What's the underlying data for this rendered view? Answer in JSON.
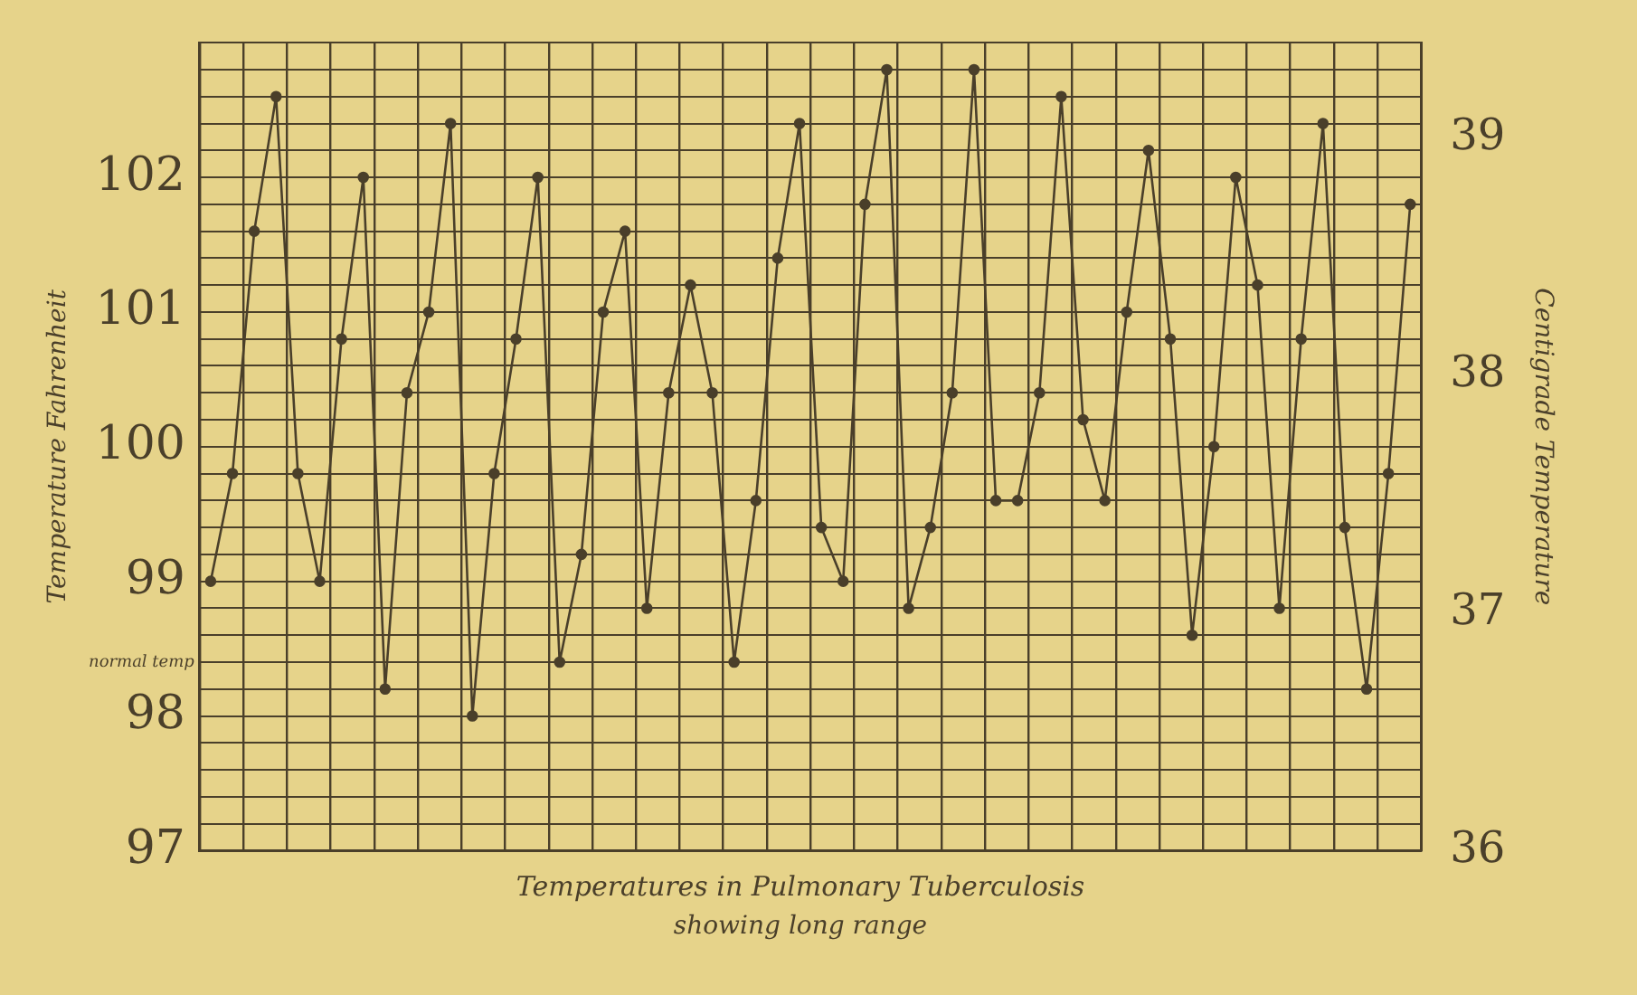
{
  "chart_data": {
    "type": "line",
    "title": "Temperatures in Pulmonary Tuberculosis",
    "subtitle": "showing long range",
    "ylabel": "Temperature Fahrenheit",
    "y2label": "Centigrade Temperature",
    "categories": [
      null,
      null,
      null,
      null,
      null,
      null,
      null,
      null,
      null,
      null,
      null,
      null,
      null,
      null,
      null,
      null,
      null,
      null,
      null,
      null,
      null,
      null,
      null,
      null,
      null,
      null,
      null,
      null,
      null,
      null,
      null,
      null,
      null,
      null,
      null,
      null,
      null,
      null,
      null,
      null,
      null,
      null,
      null,
      null,
      null,
      null,
      null,
      null,
      null,
      null,
      null,
      null,
      null,
      null,
      null,
      null
    ],
    "series": [
      {
        "color": "#4a3f2a",
        "values": [
          99.0,
          99.8,
          101.6,
          102.6,
          99.8,
          99.0,
          100.8,
          102.0,
          98.2,
          100.4,
          101.0,
          102.4,
          98.0,
          99.8,
          100.8,
          102.0,
          98.4,
          99.2,
          101.0,
          101.6,
          98.8,
          100.4,
          101.2,
          100.4,
          98.4,
          99.6,
          101.4,
          102.4,
          99.4,
          99.0,
          101.8,
          102.8,
          98.8,
          99.4,
          100.4,
          102.8,
          99.6,
          99.6,
          100.4,
          102.6,
          100.2,
          99.6,
          101.0,
          102.2,
          100.8,
          98.6,
          100.0,
          102.0,
          101.2,
          98.8,
          100.8,
          102.4,
          99.4,
          98.2,
          99.8,
          101.8
        ]
      }
    ],
    "ylim": [
      97,
      103
    ],
    "yticks": [
      97,
      {
        "value": 97.2,
        "label": null
      },
      {
        "value": 97.4,
        "label": null
      },
      {
        "value": 97.6,
        "label": null
      },
      {
        "value": 97.8,
        "label": null
      },
      98,
      {
        "value": 98.2,
        "label": null
      },
      {
        "value": 98.6,
        "label": null
      },
      {
        "value": 98.8,
        "label": null
      },
      99,
      {
        "value": 99.2,
        "label": null
      },
      {
        "value": 99.4,
        "label": null
      },
      {
        "value": 99.6,
        "label": null
      },
      {
        "value": 99.8,
        "label": null
      },
      100,
      {
        "value": 100.2,
        "label": null
      },
      {
        "value": 100.4,
        "label": null
      },
      {
        "value": 100.6,
        "label": null
      },
      {
        "value": 100.8,
        "label": null
      },
      101,
      {
        "value": 101.2,
        "label": null
      },
      {
        "value": 101.4,
        "label": null
      },
      {
        "value": 101.6,
        "label": null
      },
      {
        "value": 101.8,
        "label": null
      },
      102,
      {
        "value": 102.2,
        "label": null
      },
      {
        "value": 102.4,
        "label": null
      },
      {
        "value": 102.6,
        "label": null
      },
      {
        "value": 102.8,
        "label": null
      },
      {
        "value": 103,
        "label": null
      }
    ],
    "y2lim": [
      36,
      39.4
    ],
    "y2ticks": [
      36,
      37,
      38,
      39
    ],
    "ref_lines": [
      {
        "axis": "y",
        "value": 98.4,
        "label": "normal temp",
        "color": "#4a3f2a"
      }
    ],
    "grid": true,
    "legend": false,
    "marker": "circle",
    "line_style": "solid"
  }
}
